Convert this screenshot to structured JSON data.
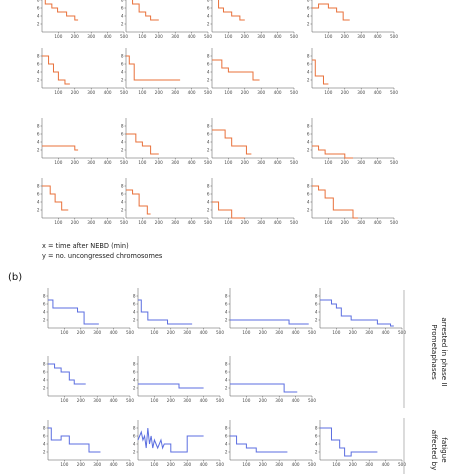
{
  "figure": {
    "legend_x": "x = time after NEBD (min)",
    "legend_y": "y = no. uncongressed chromosomes",
    "panel_b_label": "(b)",
    "side_label_1": "Prometaphases",
    "side_label_2": "arrested in phase II",
    "side_label_3": "affected by",
    "side_label_4": "fatigue"
  },
  "colors": {
    "orange": "#e8703a",
    "blue": "#5b6ee0"
  },
  "chart_data": [
    {
      "type": "line",
      "color": "orange",
      "xticks": [
        100,
        200,
        300,
        400,
        500
      ],
      "yticks": [
        2,
        4,
        6,
        8
      ],
      "xlim": [
        0,
        500
      ],
      "ylim": [
        0,
        10
      ],
      "x": [
        0,
        20,
        20,
        60,
        60,
        95,
        95,
        130,
        130,
        150,
        150,
        200,
        200,
        220
      ],
      "y": [
        9,
        9,
        7,
        7,
        6,
        6,
        5,
        5,
        5,
        5,
        4,
        4,
        3,
        3
      ]
    },
    {
      "type": "line",
      "color": "orange",
      "xticks": [
        100,
        200,
        300,
        400,
        500
      ],
      "yticks": [
        2,
        4,
        6,
        8
      ],
      "xlim": [
        0,
        500
      ],
      "ylim": [
        0,
        10
      ],
      "x": [
        0,
        40,
        40,
        80,
        80,
        120,
        120,
        150,
        150,
        200
      ],
      "y": [
        9,
        9,
        7,
        7,
        5,
        5,
        4,
        4,
        3,
        3
      ]
    },
    {
      "type": "line",
      "color": "orange",
      "xticks": [
        100,
        200,
        300,
        400,
        500
      ],
      "yticks": [
        2,
        4,
        6,
        8
      ],
      "xlim": [
        0,
        500
      ],
      "ylim": [
        0,
        10
      ],
      "x": [
        0,
        40,
        40,
        70,
        70,
        120,
        120,
        170,
        170,
        200
      ],
      "y": [
        9,
        9,
        6,
        6,
        5,
        5,
        4,
        4,
        3,
        3
      ]
    },
    {
      "type": "line",
      "color": "orange",
      "xticks": [
        100,
        200,
        300,
        400,
        500
      ],
      "yticks": [
        2,
        4,
        6,
        8
      ],
      "xlim": [
        0,
        500
      ],
      "ylim": [
        0,
        10
      ],
      "x": [
        0,
        40,
        40,
        100,
        100,
        150,
        150,
        190,
        190,
        230
      ],
      "y": [
        6,
        6,
        7,
        7,
        6,
        6,
        5,
        5,
        3,
        3
      ]
    },
    {
      "type": "line",
      "color": "orange",
      "xticks": [
        100,
        200,
        300,
        400,
        500
      ],
      "yticks": [
        2,
        4,
        6,
        8
      ],
      "xlim": [
        0,
        500
      ],
      "ylim": [
        0,
        10
      ],
      "x": [
        0,
        40,
        40,
        70,
        70,
        100,
        100,
        140,
        140,
        170
      ],
      "y": [
        8,
        8,
        6,
        6,
        4,
        4,
        2,
        2,
        1,
        1
      ]
    },
    {
      "type": "line",
      "color": "orange",
      "xticks": [
        100,
        200,
        300,
        400,
        500
      ],
      "yticks": [
        2,
        4,
        6,
        8
      ],
      "xlim": [
        0,
        500
      ],
      "ylim": [
        0,
        10
      ],
      "x": [
        0,
        20,
        20,
        50,
        50,
        330
      ],
      "y": [
        8,
        8,
        6,
        6,
        2,
        2
      ]
    },
    {
      "type": "line",
      "color": "orange",
      "xticks": [
        100,
        200,
        300,
        400,
        500
      ],
      "yticks": [
        2,
        4,
        6,
        8
      ],
      "xlim": [
        0,
        500
      ],
      "ylim": [
        0,
        10
      ],
      "x": [
        0,
        60,
        60,
        100,
        100,
        250,
        250,
        290
      ],
      "y": [
        7,
        7,
        5,
        5,
        4,
        4,
        2,
        2
      ]
    },
    {
      "type": "line",
      "color": "orange",
      "xticks": [
        100,
        200,
        300,
        400,
        500
      ],
      "yticks": [
        2,
        4,
        6,
        8
      ],
      "xlim": [
        0,
        500
      ],
      "ylim": [
        0,
        10
      ],
      "x": [
        0,
        20,
        20,
        70,
        70,
        100
      ],
      "y": [
        7,
        7,
        3,
        3,
        1,
        1
      ]
    },
    {
      "type": "line",
      "color": "orange",
      "xticks": [
        100,
        200,
        300,
        400,
        500
      ],
      "yticks": [
        2,
        4,
        6,
        8
      ],
      "xlim": [
        0,
        500
      ],
      "ylim": [
        0,
        10
      ],
      "x": [
        0,
        200,
        200,
        220
      ],
      "y": [
        3,
        3,
        2,
        2
      ]
    },
    {
      "type": "line",
      "color": "orange",
      "xticks": [
        100,
        200,
        300,
        400,
        500
      ],
      "yticks": [
        2,
        4,
        6,
        8
      ],
      "xlim": [
        0,
        500
      ],
      "ylim": [
        0,
        10
      ],
      "x": [
        0,
        60,
        60,
        100,
        100,
        150,
        150,
        200
      ],
      "y": [
        6,
        6,
        4,
        4,
        3,
        3,
        1,
        1
      ]
    },
    {
      "type": "line",
      "color": "orange",
      "xticks": [
        100,
        200,
        300,
        400,
        500
      ],
      "yticks": [
        2,
        4,
        6,
        8
      ],
      "xlim": [
        0,
        500
      ],
      "ylim": [
        0,
        10
      ],
      "x": [
        0,
        80,
        80,
        120,
        120,
        210,
        210,
        240
      ],
      "y": [
        7,
        7,
        5,
        5,
        3,
        3,
        1,
        1
      ]
    },
    {
      "type": "line",
      "color": "orange",
      "xticks": [
        100,
        200,
        300,
        400,
        500
      ],
      "yticks": [
        2,
        4,
        6,
        8
      ],
      "xlim": [
        0,
        500
      ],
      "ylim": [
        0,
        10
      ],
      "x": [
        0,
        40,
        40,
        80,
        80,
        200,
        200,
        250
      ],
      "y": [
        3,
        3,
        2,
        2,
        1,
        1,
        0,
        0
      ]
    },
    {
      "type": "line",
      "color": "orange",
      "xticks": [
        100,
        200,
        300,
        400,
        500
      ],
      "yticks": [
        2,
        4,
        6,
        8
      ],
      "xlim": [
        0,
        500
      ],
      "ylim": [
        0,
        10
      ],
      "x": [
        0,
        50,
        50,
        80,
        80,
        120,
        120,
        160
      ],
      "y": [
        8,
        8,
        6,
        6,
        4,
        4,
        2,
        2
      ]
    },
    {
      "type": "line",
      "color": "orange",
      "xticks": [
        100,
        200,
        300,
        400,
        500
      ],
      "yticks": [
        2,
        4,
        6,
        8
      ],
      "xlim": [
        0,
        500
      ],
      "ylim": [
        0,
        10
      ],
      "x": [
        0,
        40,
        40,
        80,
        80,
        130,
        130,
        150
      ],
      "y": [
        7,
        7,
        6,
        6,
        3,
        3,
        1,
        1
      ]
    },
    {
      "type": "line",
      "color": "orange",
      "xticks": [
        100,
        200,
        300,
        400,
        500
      ],
      "yticks": [
        2,
        4,
        6,
        8
      ],
      "xlim": [
        0,
        500
      ],
      "ylim": [
        0,
        10
      ],
      "x": [
        0,
        40,
        40,
        120,
        120,
        200
      ],
      "y": [
        4,
        4,
        2,
        2,
        0,
        0
      ]
    },
    {
      "type": "line",
      "color": "orange",
      "xticks": [
        100,
        200,
        300,
        400,
        500
      ],
      "yticks": [
        2,
        4,
        6,
        8
      ],
      "xlim": [
        0,
        500
      ],
      "ylim": [
        0,
        10
      ],
      "x": [
        0,
        40,
        40,
        80,
        80,
        130,
        130,
        250,
        250,
        280
      ],
      "y": [
        8,
        8,
        7,
        7,
        5,
        5,
        2,
        2,
        0,
        0
      ]
    },
    {
      "type": "line",
      "color": "blue",
      "xticks": [
        100,
        200,
        300,
        400,
        500
      ],
      "yticks": [
        2,
        4,
        6,
        8
      ],
      "xlim": [
        0,
        500
      ],
      "ylim": [
        0,
        10
      ],
      "x": [
        0,
        30,
        30,
        100,
        100,
        180,
        180,
        220,
        220,
        310
      ],
      "y": [
        7,
        7,
        5,
        5,
        5,
        5,
        4,
        4,
        1,
        1
      ]
    },
    {
      "type": "line",
      "color": "blue",
      "xticks": [
        100,
        200,
        300,
        400,
        500
      ],
      "yticks": [
        2,
        4,
        6,
        8
      ],
      "xlim": [
        0,
        500
      ],
      "ylim": [
        0,
        10
      ],
      "x": [
        0,
        20,
        20,
        60,
        60,
        180,
        180,
        330
      ],
      "y": [
        7,
        7,
        4,
        4,
        2,
        2,
        1,
        1
      ]
    },
    {
      "type": "line",
      "color": "blue",
      "xticks": [
        100,
        200,
        300,
        400,
        500
      ],
      "yticks": [
        2,
        4,
        6,
        8
      ],
      "xlim": [
        0,
        500
      ],
      "ylim": [
        0,
        10
      ],
      "x": [
        0,
        300,
        300,
        360,
        360,
        480
      ],
      "y": [
        2,
        2,
        2,
        2,
        1,
        1
      ]
    },
    {
      "type": "line",
      "color": "blue",
      "xticks": [
        100,
        200,
        300,
        400,
        500
      ],
      "yticks": [
        2,
        4,
        6,
        8
      ],
      "xlim": [
        0,
        500
      ],
      "ylim": [
        0,
        10
      ],
      "x": [
        0,
        70,
        70,
        100,
        100,
        130,
        130,
        190,
        190,
        250,
        250,
        350,
        350,
        430,
        430,
        450
      ],
      "y": [
        7,
        7,
        6,
        6,
        5,
        5,
        3,
        3,
        2,
        2,
        2,
        2,
        1,
        1,
        0.5,
        0.5
      ]
    },
    {
      "type": "line",
      "color": "blue",
      "xticks": [
        100,
        200,
        300,
        400,
        500
      ],
      "yticks": [
        2,
        4,
        6,
        8
      ],
      "xlim": [
        0,
        500
      ],
      "ylim": [
        0,
        10
      ],
      "x": [
        0,
        40,
        40,
        80,
        80,
        130,
        130,
        160,
        160,
        230
      ],
      "y": [
        8,
        8,
        7,
        7,
        6,
        6,
        4,
        4,
        3,
        3
      ]
    },
    {
      "type": "line",
      "color": "blue",
      "xticks": [
        100,
        200,
        300,
        400,
        500
      ],
      "yticks": [
        2,
        4,
        6,
        8
      ],
      "xlim": [
        0,
        500
      ],
      "ylim": [
        0,
        10
      ],
      "x": [
        0,
        250,
        250,
        400
      ],
      "y": [
        3,
        3,
        2,
        2
      ]
    },
    {
      "type": "line",
      "color": "blue",
      "xticks": [
        100,
        200,
        300,
        400,
        500
      ],
      "yticks": [
        2,
        4,
        6,
        8
      ],
      "xlim": [
        0,
        500
      ],
      "ylim": [
        0,
        10
      ],
      "x": [
        0,
        330,
        330,
        410
      ],
      "y": [
        3,
        3,
        1,
        1
      ]
    },
    {
      "type": "line",
      "color": "blue",
      "xticks": [
        100,
        200,
        300,
        400,
        500
      ],
      "yticks": [
        2,
        4,
        6,
        8
      ],
      "xlim": [
        0,
        500
      ],
      "ylim": [
        0,
        10
      ],
      "x": [
        0,
        20,
        20,
        80,
        80,
        130,
        130,
        250,
        250,
        320
      ],
      "y": [
        8,
        8,
        5,
        5,
        6,
        6,
        4,
        4,
        2,
        2
      ]
    },
    {
      "type": "line",
      "color": "blue",
      "xticks": [
        100,
        200,
        300,
        400,
        500
      ],
      "yticks": [
        2,
        4,
        6,
        8
      ],
      "xlim": [
        0,
        500
      ],
      "ylim": [
        0,
        10
      ],
      "x": [
        0,
        20,
        30,
        40,
        50,
        60,
        70,
        80,
        90,
        100,
        110,
        120,
        140,
        150,
        160,
        200,
        200,
        300,
        300,
        400
      ],
      "y": [
        5,
        7,
        5,
        6,
        3,
        8,
        4,
        6,
        3,
        5,
        4,
        3,
        5,
        3,
        4,
        4,
        2,
        2,
        6,
        6
      ]
    },
    {
      "type": "line",
      "color": "blue",
      "xticks": [
        100,
        200,
        300,
        400,
        500
      ],
      "yticks": [
        2,
        4,
        6,
        8
      ],
      "xlim": [
        0,
        500
      ],
      "ylim": [
        0,
        10
      ],
      "x": [
        0,
        40,
        40,
        100,
        100,
        160,
        160,
        350
      ],
      "y": [
        6,
        6,
        4,
        4,
        3,
        3,
        2,
        2
      ]
    },
    {
      "type": "line",
      "color": "blue",
      "xticks": [
        100,
        200,
        300,
        400,
        500
      ],
      "yticks": [
        2,
        4,
        6,
        8
      ],
      "xlim": [
        0,
        500
      ],
      "ylim": [
        0,
        10
      ],
      "x": [
        0,
        70,
        70,
        120,
        120,
        150,
        150,
        190,
        190,
        350
      ],
      "y": [
        8,
        8,
        5,
        5,
        3,
        3,
        1,
        1,
        2,
        2
      ]
    }
  ]
}
